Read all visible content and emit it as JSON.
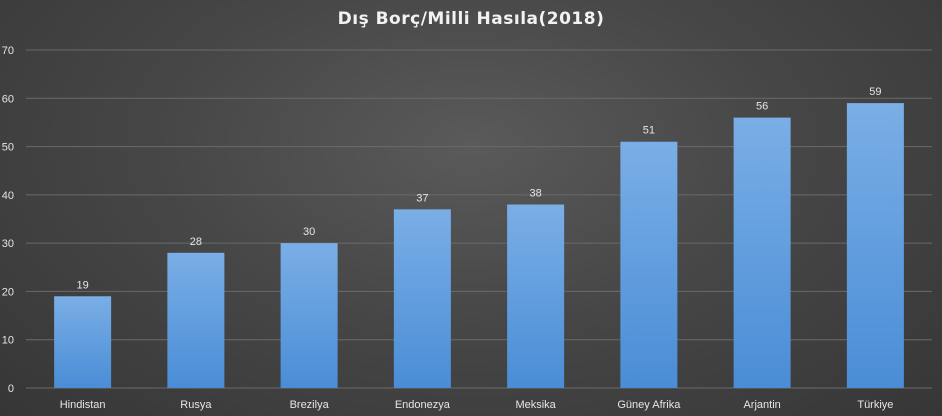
{
  "chart_data": {
    "type": "bar",
    "title": "Dış Borç/Milli Hasıla(2018)",
    "xlabel": "",
    "ylabel": "",
    "categories": [
      "Hindistan",
      "Rusya",
      "Brezilya",
      "Endonezya",
      "Meksika",
      "Güney Afrika",
      "Arjantin",
      "Türkiye"
    ],
    "values": [
      19,
      28,
      30,
      37,
      38,
      51,
      56,
      59
    ],
    "data_labels": [
      "19",
      "28",
      "30",
      "37",
      "38",
      "51",
      "56",
      "59"
    ],
    "ylim": [
      0,
      70
    ],
    "yticks": [
      "0",
      "10",
      "20",
      "30",
      "40",
      "50",
      "60",
      "70"
    ],
    "grid": true,
    "legend": "none",
    "colors": {
      "bar_top": "#7aaee6",
      "bar_bottom": "#4a8dd6",
      "grid": "#6a6a6a",
      "text": "#e6e6e6",
      "background": "#474747"
    }
  }
}
